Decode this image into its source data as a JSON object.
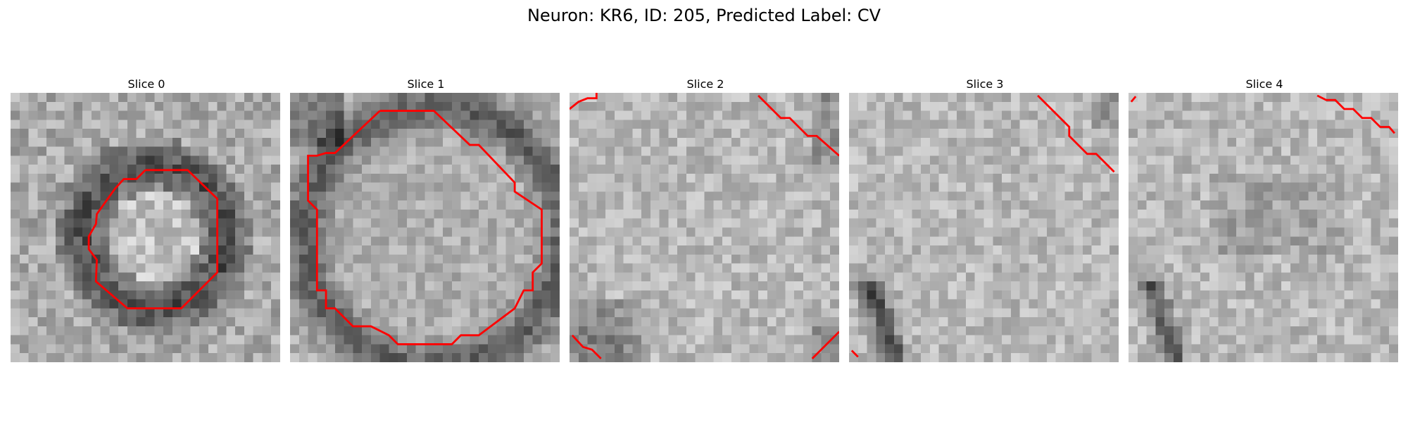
{
  "figure": {
    "title": "Neuron: KR6, ID: 205, Predicted Label: CV"
  },
  "colors": {
    "contour": "#ff0000",
    "background": "#ffffff"
  },
  "slices": [
    {
      "title": "Slice 0",
      "pattern": "ring"
    },
    {
      "title": "Slice 1",
      "pattern": "large-ring"
    },
    {
      "title": "Slice 2",
      "pattern": "corners"
    },
    {
      "title": "Slice 3",
      "pattern": "bottom-left-dark"
    },
    {
      "title": "Slice 4",
      "pattern": "bottom-left-dark-soft"
    }
  ]
}
